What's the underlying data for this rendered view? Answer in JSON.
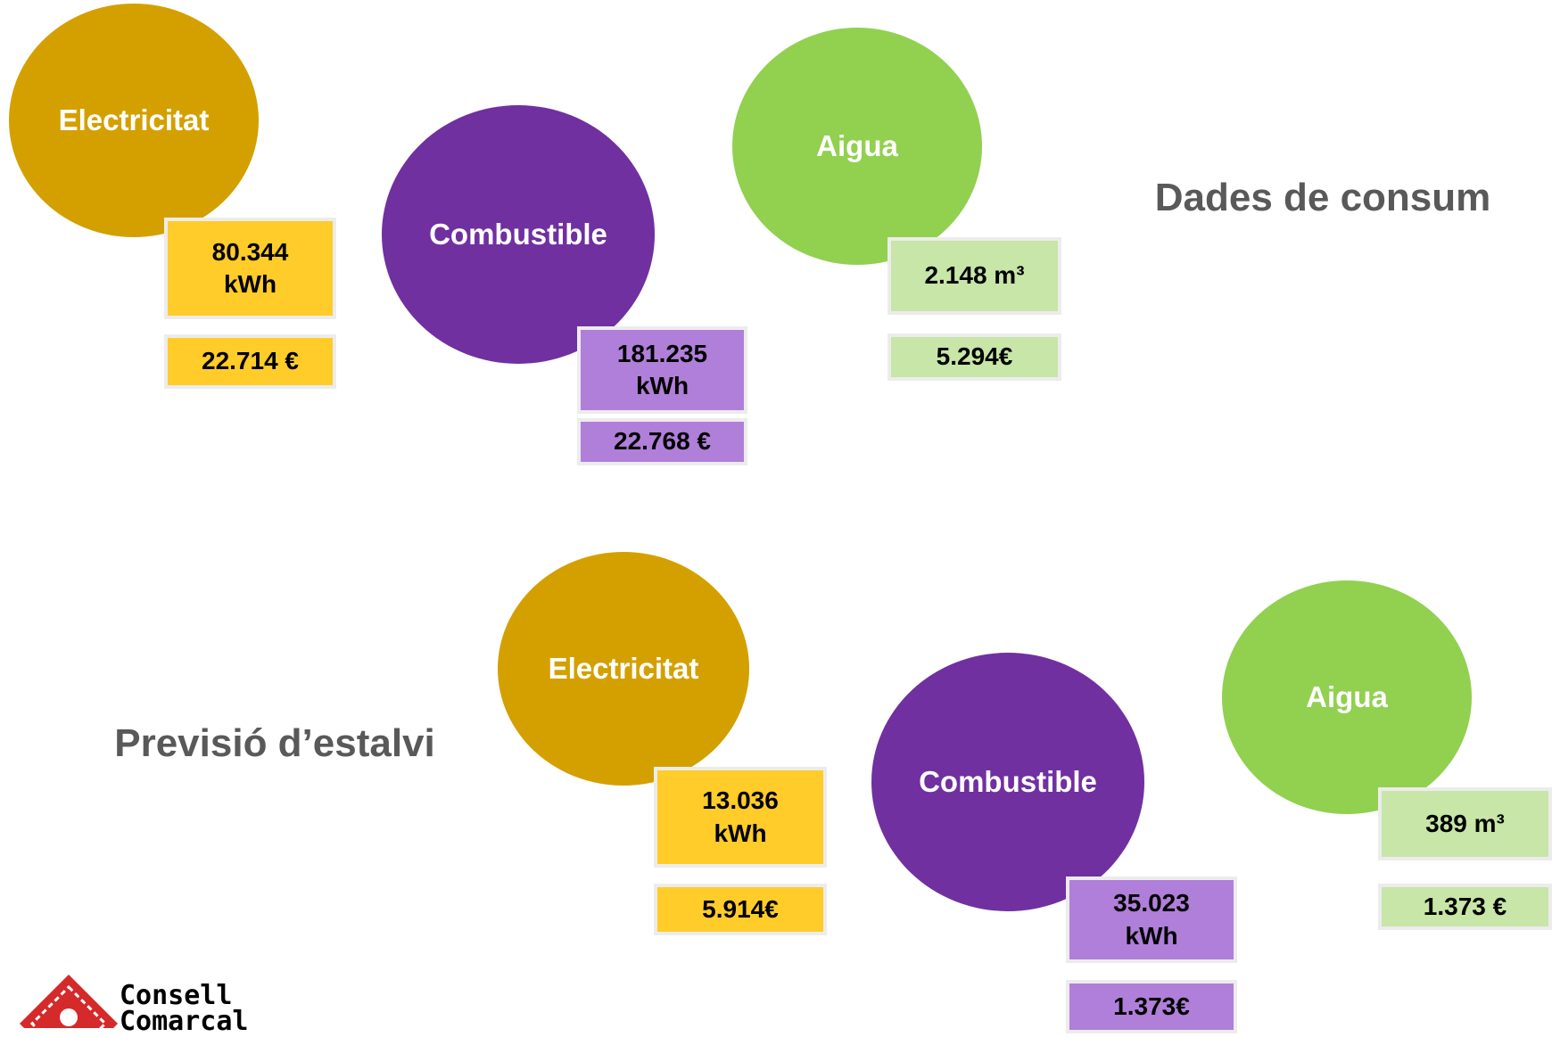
{
  "sections": [
    {
      "title": "Dades de consum",
      "items": [
        {
          "label": "Electricitat",
          "boxes": [
            "80.344 kWh",
            "22.714 €"
          ]
        },
        {
          "label": "Combustible",
          "boxes": [
            "181.235 kWh",
            "22.768 €"
          ]
        },
        {
          "label": "Aigua",
          "boxes": [
            "2.148 m³",
            "5.294€"
          ]
        }
      ]
    },
    {
      "title": "Previsió d’estalvi",
      "items": [
        {
          "label": "Electricitat",
          "boxes": [
            "13.036 kWh",
            "5.914€"
          ]
        },
        {
          "label": "Combustible",
          "boxes": [
            "35.023 kWh",
            "1.373€"
          ]
        },
        {
          "label": "Aigua",
          "boxes": [
            "389 m³",
            "1.373 €"
          ]
        }
      ]
    }
  ],
  "logo": {
    "line1": "Consell",
    "line2": "Comarcal"
  }
}
